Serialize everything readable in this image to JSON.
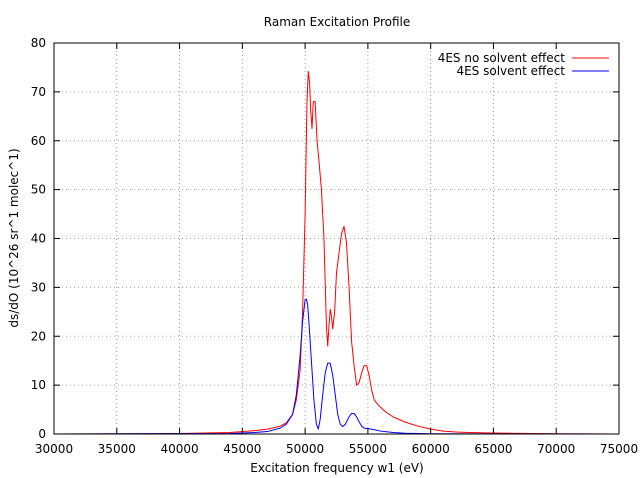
{
  "chart_data": {
    "type": "line",
    "title": "Raman Excitation Profile",
    "xlabel": "Excitation frequency w1 (eV)",
    "ylabel": "ds/dO  (10^26 sr^1 molec^1)",
    "xlim": [
      30000,
      75000
    ],
    "ylim": [
      0,
      80
    ],
    "xticks": [
      30000,
      35000,
      40000,
      45000,
      50000,
      55000,
      60000,
      65000,
      70000,
      75000
    ],
    "yticks": [
      0,
      10,
      20,
      30,
      40,
      50,
      60,
      70,
      80
    ],
    "grid": true,
    "legend_position": "top-right",
    "series": [
      {
        "name": "4ES no solvent effect",
        "color": "#ff0000",
        "x": [
          30000,
          40000,
          44000,
          46000,
          47000,
          48000,
          48500,
          49000,
          49300,
          49600,
          49800,
          50000,
          50150,
          50250,
          50350,
          50450,
          50550,
          50650,
          50800,
          50950,
          51100,
          51300,
          51500,
          51700,
          51800,
          51900,
          52000,
          52100,
          52200,
          52350,
          52500,
          52700,
          52900,
          53100,
          53300,
          53500,
          53700,
          53900,
          54100,
          54300,
          54500,
          54700,
          54900,
          55100,
          55300,
          55500,
          55800,
          56200,
          56600,
          57000,
          58000,
          59000,
          60000,
          61000,
          62000,
          63000,
          65000,
          70000,
          75000
        ],
        "y": [
          0,
          0.1,
          0.3,
          0.7,
          1.0,
          1.6,
          2.3,
          4.0,
          7.0,
          13.0,
          25.0,
          45.0,
          68.0,
          74.2,
          72.0,
          66.0,
          62.5,
          68.0,
          68.0,
          60.0,
          56.0,
          50.0,
          40.0,
          22.0,
          18.0,
          22.0,
          25.5,
          24.0,
          21.5,
          25.0,
          33.0,
          37.0,
          41.0,
          42.5,
          39.0,
          30.0,
          19.0,
          14.0,
          10.0,
          10.5,
          12.5,
          14.0,
          14.0,
          12.0,
          9.0,
          7.0,
          6.0,
          5.0,
          4.2,
          3.5,
          2.4,
          1.6,
          1.0,
          0.6,
          0.4,
          0.3,
          0.2,
          0.05,
          0
        ]
      },
      {
        "name": "4ES solvent effect",
        "color": "#0000ff",
        "x": [
          30000,
          44000,
          46000,
          47000,
          48000,
          48500,
          49000,
          49300,
          49600,
          49800,
          50000,
          50100,
          50200,
          50300,
          50500,
          50700,
          50900,
          51050,
          51200,
          51400,
          51600,
          51800,
          52000,
          52200,
          52400,
          52600,
          52800,
          53000,
          53200,
          53500,
          53700,
          53900,
          54100,
          54300,
          54500,
          54700,
          55000,
          55500,
          56000,
          57000,
          58000,
          60000,
          75000
        ],
        "y": [
          0,
          0.1,
          0.3,
          0.5,
          1.2,
          2.0,
          4.0,
          8.0,
          16.0,
          23.0,
          27.5,
          27.6,
          26.5,
          23.0,
          15.0,
          7.0,
          2.0,
          1.0,
          3.0,
          8.0,
          12.5,
          14.5,
          14.5,
          12.0,
          8.0,
          4.0,
          2.0,
          1.5,
          2.0,
          3.5,
          4.2,
          4.2,
          3.5,
          2.5,
          1.6,
          1.2,
          1.1,
          0.9,
          0.6,
          0.3,
          0.15,
          0.05,
          0
        ]
      }
    ]
  }
}
